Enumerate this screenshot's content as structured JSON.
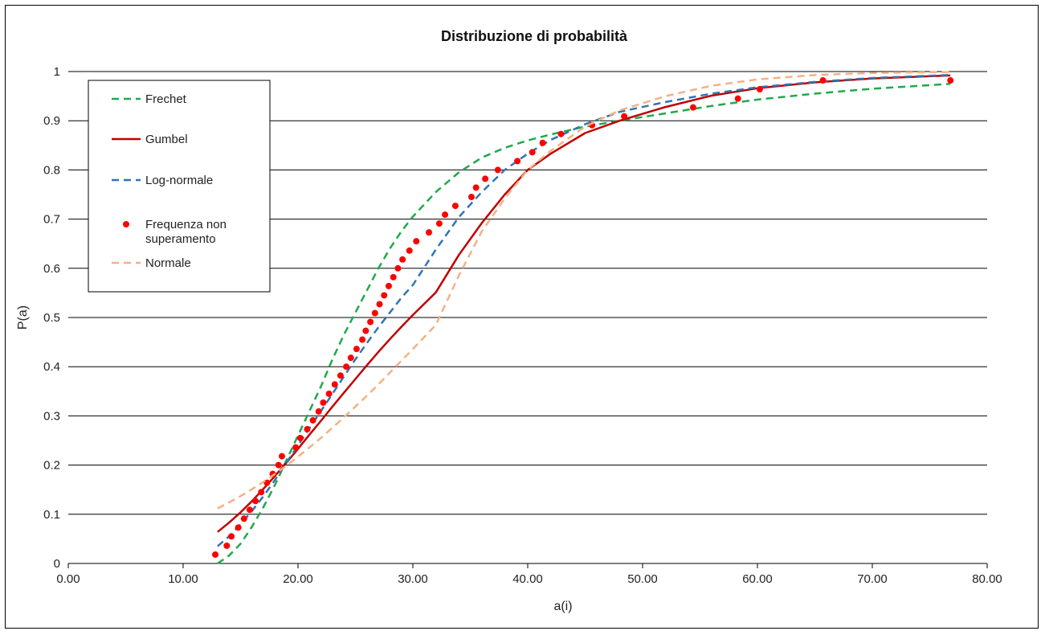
{
  "chart_data": {
    "type": "scatter",
    "title": "Distribuzione di probabilità",
    "xlabel": "a(i)",
    "ylabel": "P(a)",
    "xlim": [
      0,
      80
    ],
    "ylim": [
      0,
      1
    ],
    "x_ticks": [
      "0.00",
      "10.00",
      "20.00",
      "30.00",
      "40.00",
      "50.00",
      "60.00",
      "70.00",
      "80.00"
    ],
    "y_ticks": [
      "0",
      "0.1",
      "0.2",
      "0.3",
      "0.4",
      "0.5",
      "0.6",
      "0.7",
      "0.8",
      "0.9",
      "1"
    ],
    "grid": "horizontal",
    "legend_position": "top-left",
    "series": [
      {
        "name": "Frechet",
        "style": "dashed-line",
        "color": "#1faa4a",
        "x": [
          13.0,
          14.0,
          15.0,
          16.0,
          17.0,
          18.0,
          19.0,
          20.0,
          21.0,
          22.0,
          23.0,
          24.0,
          25.0,
          26.0,
          27.0,
          28.0,
          29.0,
          30.0,
          32.0,
          34.0,
          36.0,
          38.0,
          40.0,
          42.0,
          45.0,
          48.0,
          52.0,
          56.0,
          60.0,
          65.0,
          70.0,
          76.8
        ],
        "y": [
          0.0,
          0.016,
          0.04,
          0.075,
          0.115,
          0.16,
          0.21,
          0.26,
          0.31,
          0.36,
          0.415,
          0.465,
          0.51,
          0.555,
          0.6,
          0.64,
          0.675,
          0.705,
          0.755,
          0.795,
          0.825,
          0.845,
          0.86,
          0.872,
          0.888,
          0.9,
          0.915,
          0.93,
          0.943,
          0.955,
          0.965,
          0.975
        ]
      },
      {
        "name": "Gumbel",
        "style": "solid-line",
        "color": "#c00000",
        "x": [
          13.0,
          14.0,
          15.0,
          16.0,
          17.0,
          18.0,
          19.0,
          20.0,
          21.0,
          22.0,
          23.0,
          24.0,
          25.0,
          26.0,
          27.0,
          28.0,
          29.0,
          30.0,
          32.0,
          34.0,
          36.0,
          38.0,
          40.0,
          42.0,
          45.0,
          48.0,
          52.0,
          56.0,
          60.0,
          65.0,
          70.0,
          76.8
        ],
        "y": [
          0.064,
          0.083,
          0.104,
          0.127,
          0.152,
          0.178,
          0.205,
          0.233,
          0.262,
          0.29,
          0.319,
          0.347,
          0.375,
          0.403,
          0.43,
          0.456,
          0.481,
          0.505,
          0.551,
          0.627,
          0.692,
          0.75,
          0.8,
          0.833,
          0.875,
          0.9,
          0.928,
          0.951,
          0.966,
          0.978,
          0.986,
          0.992
        ]
      },
      {
        "name": "Log-normale",
        "style": "dashed-line",
        "color": "#2e75b6",
        "x": [
          13.0,
          14.0,
          15.0,
          16.0,
          17.0,
          18.0,
          19.0,
          20.0,
          21.0,
          22.0,
          23.0,
          24.0,
          25.0,
          26.0,
          27.0,
          28.0,
          29.0,
          30.0,
          32.0,
          34.0,
          36.0,
          38.0,
          40.0,
          42.0,
          45.0,
          48.0,
          52.0,
          56.0,
          60.0,
          65.0,
          70.0,
          76.8
        ],
        "y": [
          0.035,
          0.055,
          0.08,
          0.107,
          0.137,
          0.17,
          0.205,
          0.24,
          0.275,
          0.31,
          0.345,
          0.38,
          0.415,
          0.448,
          0.48,
          0.51,
          0.54,
          0.566,
          0.638,
          0.704,
          0.755,
          0.8,
          0.833,
          0.861,
          0.893,
          0.918,
          0.938,
          0.955,
          0.968,
          0.979,
          0.987,
          0.993
        ]
      },
      {
        "name": "Frequenza non superamento",
        "style": "markers",
        "color": "#ff0000",
        "x": [
          12.8,
          13.8,
          14.2,
          14.8,
          15.3,
          15.8,
          16.3,
          16.8,
          17.3,
          17.8,
          18.3,
          18.6,
          19.8,
          20.2,
          20.8,
          21.3,
          21.8,
          22.2,
          22.7,
          23.2,
          23.7,
          24.2,
          24.6,
          25.1,
          25.6,
          25.9,
          26.3,
          26.7,
          27.1,
          27.5,
          27.9,
          28.3,
          28.7,
          29.1,
          29.7,
          30.3,
          31.4,
          32.3,
          32.8,
          33.7,
          35.1,
          35.5,
          36.3,
          37.4,
          39.1,
          40.4,
          41.3,
          42.9,
          45.6,
          48.4,
          54.4,
          58.3,
          60.2,
          65.7,
          76.8
        ],
        "y": [
          0.018,
          0.036,
          0.055,
          0.073,
          0.091,
          0.109,
          0.127,
          0.145,
          0.164,
          0.182,
          0.2,
          0.218,
          0.236,
          0.255,
          0.273,
          0.291,
          0.309,
          0.327,
          0.345,
          0.364,
          0.382,
          0.4,
          0.418,
          0.436,
          0.455,
          0.473,
          0.491,
          0.509,
          0.527,
          0.545,
          0.564,
          0.582,
          0.6,
          0.618,
          0.636,
          0.655,
          0.673,
          0.691,
          0.709,
          0.727,
          0.745,
          0.764,
          0.782,
          0.8,
          0.818,
          0.836,
          0.855,
          0.873,
          0.891,
          0.909,
          0.927,
          0.945,
          0.964,
          0.982,
          0.982
        ]
      },
      {
        "name": "Normale",
        "style": "dashed-line",
        "color": "#f4b183",
        "x": [
          13.0,
          14.0,
          15.0,
          16.0,
          17.0,
          18.0,
          19.0,
          20.0,
          21.0,
          22.0,
          23.0,
          24.0,
          25.0,
          26.0,
          27.0,
          28.0,
          29.0,
          30.0,
          32.0,
          34.0,
          36.0,
          38.0,
          40.0,
          42.0,
          45.0,
          48.0,
          52.0,
          56.0,
          60.0,
          65.0,
          70.0,
          76.8
        ],
        "y": [
          0.112,
          0.124,
          0.137,
          0.151,
          0.166,
          0.182,
          0.199,
          0.217,
          0.236,
          0.255,
          0.276,
          0.297,
          0.319,
          0.341,
          0.364,
          0.388,
          0.412,
          0.436,
          0.485,
          0.585,
          0.675,
          0.742,
          0.8,
          0.839,
          0.888,
          0.921,
          0.95,
          0.971,
          0.984,
          0.993,
          0.997,
          0.999
        ]
      }
    ],
    "legend_labels": [
      [
        "Frechet"
      ],
      [
        "Gumbel"
      ],
      [
        "Log-normale"
      ],
      [
        "Frequenza non",
        "superamento"
      ],
      [
        "Normale"
      ]
    ]
  }
}
